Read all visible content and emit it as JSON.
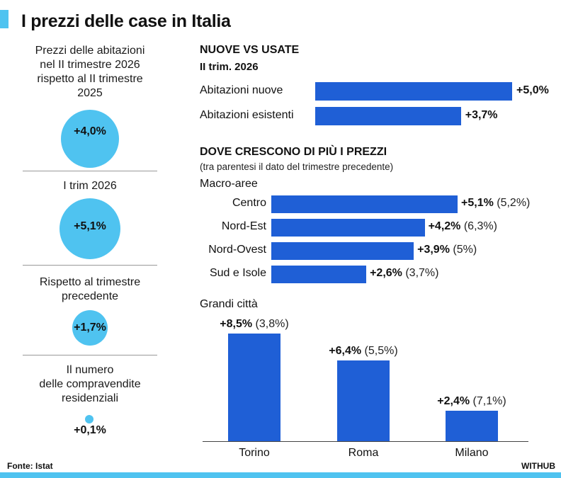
{
  "title": "I prezzi delle case in Italia",
  "colors": {
    "accent": "#4fc3f0",
    "bar": "#1f5fd6"
  },
  "left_stats": [
    {
      "label_lines": [
        "Prezzi delle abitazioni",
        "nel II trimestre 2026",
        "rispetto al II trimestre",
        "2025"
      ],
      "value": "+4,0%"
    },
    {
      "label_lines": [
        "I trim 2026"
      ],
      "value": "+5,1%"
    },
    {
      "label_lines": [
        "Rispetto al trimestre",
        "precedente"
      ],
      "value": "+1,7%"
    },
    {
      "label_lines": [
        "Il numero",
        "delle compravendite",
        "residenziali"
      ],
      "value": "+0,1%"
    }
  ],
  "chart_data": [
    {
      "type": "bar",
      "orientation": "horizontal",
      "title": "NUOVE VS USATE",
      "subtitle": "II trim. 2026",
      "categories": [
        "Abitazioni nuove",
        "Abitazioni esistenti"
      ],
      "values": [
        5.0,
        3.7
      ],
      "value_labels": [
        "+5,0%",
        "+3,7%"
      ]
    },
    {
      "type": "bar",
      "orientation": "horizontal",
      "title": "DOVE CRESCONO DI PIÙ I PREZZI",
      "note": "(tra parentesi il dato del trimestre precedente)",
      "group_label": "Macro-aree",
      "categories": [
        "Centro",
        "Nord-Est",
        "Nord-Ovest",
        "Sud e Isole"
      ],
      "values": [
        5.1,
        4.2,
        3.9,
        2.6
      ],
      "value_labels": [
        "+5,1%",
        "+4,2%",
        "+3,9%",
        "+2,6%"
      ],
      "previous_labels": [
        "(5,2%)",
        "(6,3%)",
        "(5%)",
        "(3,7%)"
      ]
    },
    {
      "type": "bar",
      "orientation": "vertical",
      "group_label": "Grandi città",
      "categories": [
        "Torino",
        "Roma",
        "Milano"
      ],
      "values": [
        8.5,
        6.4,
        2.4
      ],
      "value_labels": [
        "+8,5%",
        "+6,4%",
        "+2,4%"
      ],
      "previous_labels": [
        "(3,8%)",
        "(5,5%)",
        "(7,1%)"
      ]
    }
  ],
  "footer": {
    "source": "Fonte: Istat",
    "brand": "WITHUB"
  }
}
